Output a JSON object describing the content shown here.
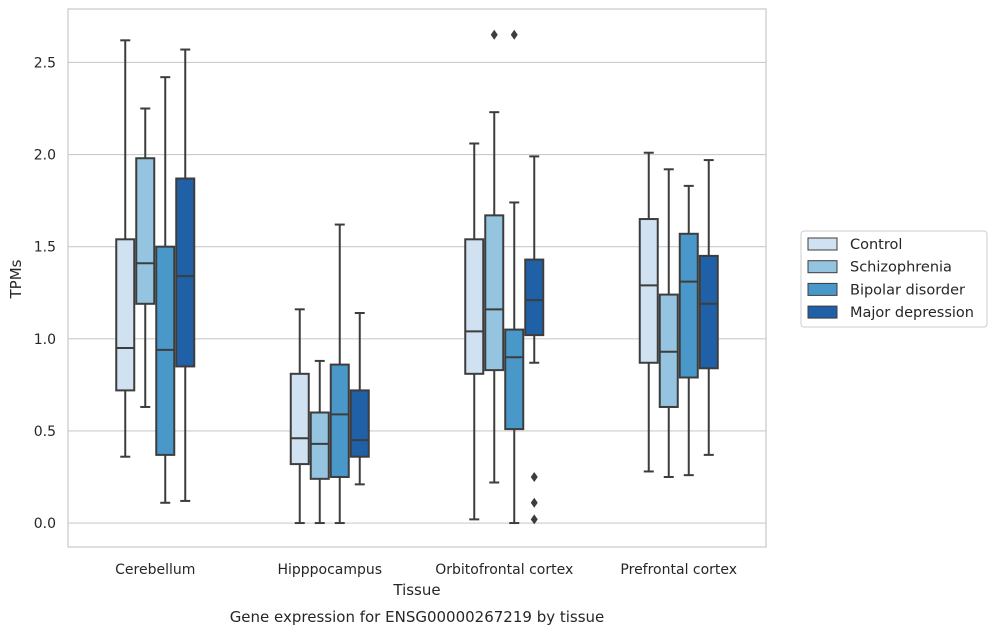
{
  "chart_data": {
    "type": "box",
    "title": "",
    "caption": "Gene expression for ENSG00000267219 by tissue",
    "xlabel": "Tissue",
    "ylabel": "TPMs",
    "ylim": [
      -0.13,
      2.79
    ],
    "yticks": [
      "0.0",
      "0.5",
      "1.0",
      "1.5",
      "2.0",
      "2.5"
    ],
    "grid": "horizontal",
    "legend_position": "right",
    "categories": [
      "Cerebellum",
      "Hipppocampus",
      "Orbitofrontal cortex",
      "Prefrontal cortex"
    ],
    "series": [
      {
        "name": "Control",
        "color": "#d0e1f2",
        "boxes": [
          {
            "whisker_low": 0.36,
            "q1": 0.72,
            "median": 0.95,
            "q3": 1.54,
            "whisker_high": 2.62,
            "outliers": []
          },
          {
            "whisker_low": 0.0,
            "q1": 0.32,
            "median": 0.46,
            "q3": 0.81,
            "whisker_high": 1.16,
            "outliers": []
          },
          {
            "whisker_low": 0.02,
            "q1": 0.81,
            "median": 1.04,
            "q3": 1.54,
            "whisker_high": 2.06,
            "outliers": []
          },
          {
            "whisker_low": 0.28,
            "q1": 0.87,
            "median": 1.29,
            "q3": 1.65,
            "whisker_high": 2.01,
            "outliers": []
          }
        ]
      },
      {
        "name": "Schizophrenia",
        "color": "#94c4df",
        "boxes": [
          {
            "whisker_low": 0.63,
            "q1": 1.19,
            "median": 1.41,
            "q3": 1.98,
            "whisker_high": 2.25,
            "outliers": []
          },
          {
            "whisker_low": 0.0,
            "q1": 0.24,
            "median": 0.43,
            "q3": 0.6,
            "whisker_high": 0.88,
            "outliers": []
          },
          {
            "whisker_low": 0.22,
            "q1": 0.83,
            "median": 1.16,
            "q3": 1.67,
            "whisker_high": 2.23,
            "outliers": [
              2.65
            ]
          },
          {
            "whisker_low": 0.25,
            "q1": 0.63,
            "median": 0.93,
            "q3": 1.24,
            "whisker_high": 1.92,
            "outliers": []
          }
        ]
      },
      {
        "name": "Bipolar disorder",
        "color": "#4a98c9",
        "boxes": [
          {
            "whisker_low": 0.11,
            "q1": 0.37,
            "median": 0.94,
            "q3": 1.5,
            "whisker_high": 2.42,
            "outliers": []
          },
          {
            "whisker_low": 0.0,
            "q1": 0.25,
            "median": 0.59,
            "q3": 0.86,
            "whisker_high": 1.62,
            "outliers": []
          },
          {
            "whisker_low": 0.0,
            "q1": 0.51,
            "median": 0.9,
            "q3": 1.05,
            "whisker_high": 1.74,
            "outliers": [
              2.65
            ]
          },
          {
            "whisker_low": 0.26,
            "q1": 0.79,
            "median": 1.31,
            "q3": 1.57,
            "whisker_high": 1.83,
            "outliers": []
          }
        ]
      },
      {
        "name": "Major depression",
        "color": "#2060a7",
        "boxes": [
          {
            "whisker_low": 0.12,
            "q1": 0.85,
            "median": 1.34,
            "q3": 1.87,
            "whisker_high": 2.57,
            "outliers": []
          },
          {
            "whisker_low": 0.21,
            "q1": 0.36,
            "median": 0.45,
            "q3": 0.72,
            "whisker_high": 1.14,
            "outliers": []
          },
          {
            "whisker_low": 0.87,
            "q1": 1.02,
            "median": 1.21,
            "q3": 1.43,
            "whisker_high": 1.99,
            "outliers": [
              0.25,
              0.11,
              0.02
            ]
          },
          {
            "whisker_low": 0.37,
            "q1": 0.84,
            "median": 1.19,
            "q3": 1.45,
            "whisker_high": 1.97,
            "outliers": []
          }
        ]
      }
    ]
  }
}
